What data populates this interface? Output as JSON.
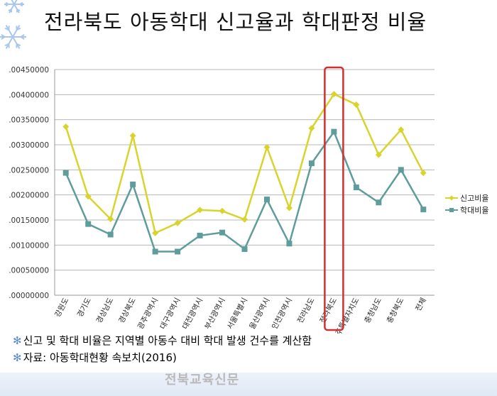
{
  "title": "전라북도 아동학대 신고율과 학대판정 비율",
  "notes": [
    "신고 및 학대 비율은 지역별 아동수 대비 학대 발생 건수를 계산함",
    "자료: 아동학대현황 속보치(2016)"
  ],
  "watermark": "전북교육신문",
  "colors": {
    "report": "#d9d42c",
    "abuse": "#5f9c9c",
    "highlight": "#d32f2f",
    "grid": "#b7b7b7"
  },
  "chart_data": {
    "type": "line",
    "title": "전라북도 아동학대 신고율과 학대판정 비율",
    "categories": [
      "강원도",
      "경기도",
      "경상남도",
      "경상북도",
      "광주광역시",
      "대구광역시",
      "대전광역시",
      "부산광역시",
      "서울특별시",
      "울산광역시",
      "인천광역시",
      "전라남도",
      "전라북도",
      "제주특별자치도",
      "충청남도",
      "충청북도",
      "전체"
    ],
    "series": [
      {
        "name": "신고비율",
        "color": "#d9d42c",
        "marker": "diamond",
        "values": [
          0.00336,
          0.00197,
          0.00152,
          0.00318,
          0.00124,
          0.00144,
          0.0017,
          0.00168,
          0.00151,
          0.00295,
          0.00174,
          0.00333,
          0.00401,
          0.0038,
          0.0028,
          0.0033,
          0.00244
        ]
      },
      {
        "name": "학대비율",
        "color": "#5f9c9c",
        "marker": "square",
        "values": [
          0.00244,
          0.00142,
          0.00121,
          0.00221,
          0.00087,
          0.00087,
          0.00119,
          0.00125,
          0.00092,
          0.00191,
          0.00103,
          0.00263,
          0.00326,
          0.00215,
          0.00185,
          0.0025,
          0.00171
        ]
      }
    ],
    "ylim": [
      0,
      0.0045
    ],
    "yticks": [
      ".00450000",
      ".00400000",
      ".00350000",
      ".00300000",
      ".00250000",
      ".00200000",
      ".00150000",
      ".00100000",
      ".00050000",
      ".00000000"
    ],
    "ytick_values": [
      0.0045,
      0.004,
      0.0035,
      0.003,
      0.0025,
      0.002,
      0.0015,
      0.001,
      0.0005,
      0
    ],
    "grid": true,
    "legend": "right",
    "highlight_category": "전라북도"
  }
}
